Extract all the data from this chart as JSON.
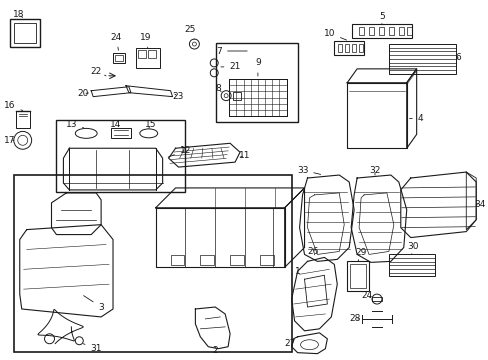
{
  "background_color": "#ffffff",
  "line_color": "#1a1a1a",
  "figsize": [
    4.89,
    3.6
  ],
  "dpi": 100,
  "fs": 6.5
}
